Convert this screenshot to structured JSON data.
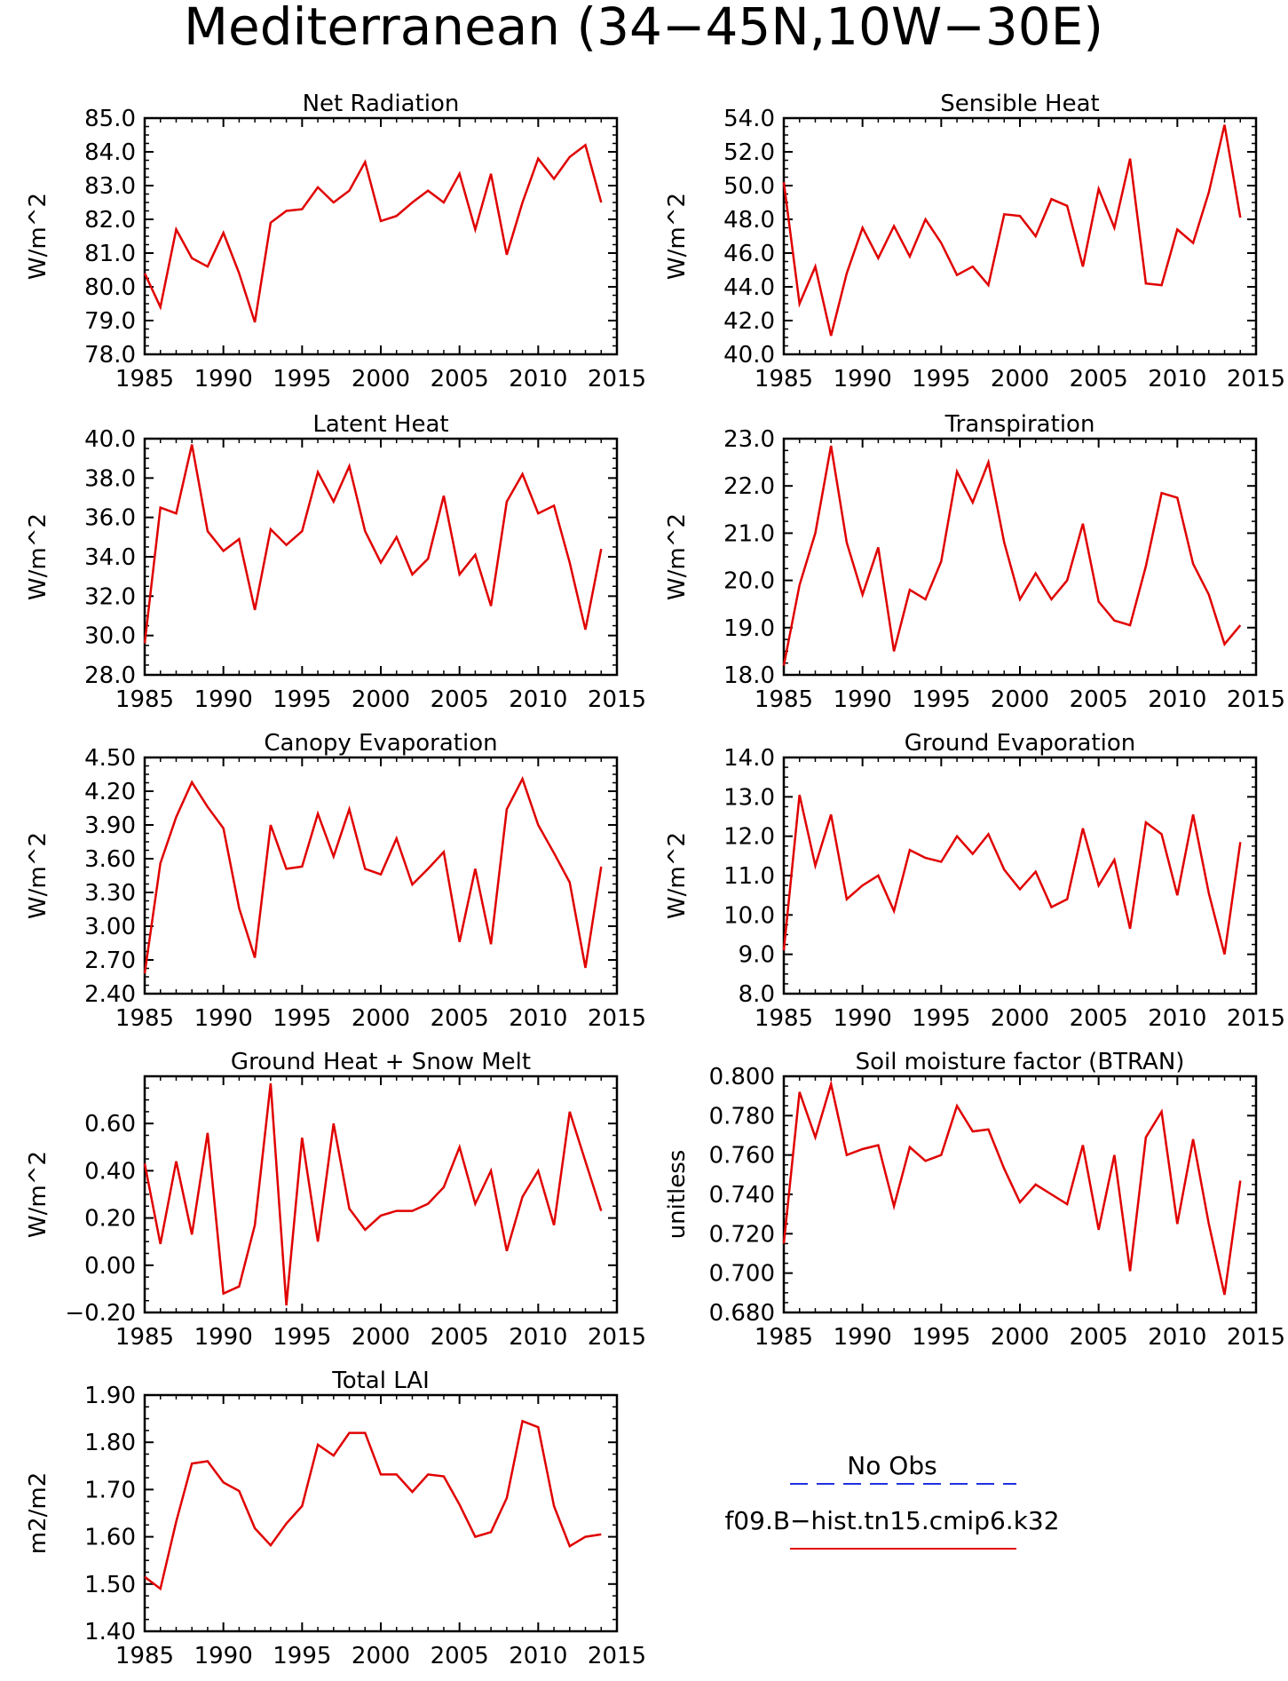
{
  "figure_title": "Mediterranean (34−45N,10W−30E)",
  "legend": {
    "entries": [
      {
        "label": "No Obs",
        "color": "#2030e0",
        "style": "dashed"
      },
      {
        "label": "f09.B−hist.tn15.cmip6.k32",
        "color": "#e00000",
        "style": "solid"
      }
    ]
  },
  "chart_data": [
    {
      "type": "line",
      "title": "Net Radiation",
      "ylabel": "W/m^2",
      "xlim": [
        1985,
        2015
      ],
      "ylim": [
        78.0,
        85.0
      ],
      "xticks": [
        "1985",
        "1990",
        "1995",
        "2000",
        "2005",
        "2010",
        "2015"
      ],
      "yticks": [
        "78.0",
        "79.0",
        "80.0",
        "81.0",
        "82.0",
        "83.0",
        "84.0",
        "85.0"
      ],
      "series": [
        {
          "color": "#e00000",
          "x": [
            1985,
            1986,
            1987,
            1988,
            1989,
            1990,
            1991,
            1992,
            1993,
            1994,
            1995,
            1996,
            1997,
            1998,
            1999,
            2000,
            2001,
            2002,
            2003,
            2004,
            2005,
            2006,
            2007,
            2008,
            2009,
            2010,
            2011,
            2012,
            2013,
            2014
          ],
          "values": [
            80.4,
            79.4,
            81.7,
            80.85,
            80.6,
            81.6,
            80.4,
            78.95,
            81.9,
            82.25,
            82.3,
            82.95,
            82.5,
            82.85,
            83.7,
            81.95,
            82.1,
            82.5,
            82.85,
            82.5,
            83.35,
            81.7,
            83.35,
            80.95,
            82.5,
            83.8,
            83.2,
            83.85,
            84.2,
            82.5
          ]
        }
      ]
    },
    {
      "type": "line",
      "title": "Sensible Heat",
      "ylabel": "W/m^2",
      "xlim": [
        1985,
        2015
      ],
      "ylim": [
        40.0,
        54.0
      ],
      "xticks": [
        "1985",
        "1990",
        "1995",
        "2000",
        "2005",
        "2010",
        "2015"
      ],
      "yticks": [
        "40.0",
        "42.0",
        "44.0",
        "46.0",
        "48.0",
        "50.0",
        "52.0",
        "54.0"
      ],
      "series": [
        {
          "color": "#e00000",
          "x": [
            1985,
            1986,
            1987,
            1988,
            1989,
            1990,
            1991,
            1992,
            1993,
            1994,
            1995,
            1996,
            1997,
            1998,
            1999,
            2000,
            2001,
            2002,
            2003,
            2004,
            2005,
            2006,
            2007,
            2008,
            2009,
            2010,
            2011,
            2012,
            2013,
            2014
          ],
          "values": [
            50.2,
            43.0,
            45.2,
            41.1,
            44.8,
            47.5,
            45.7,
            47.6,
            45.8,
            48.0,
            46.6,
            44.7,
            45.2,
            44.1,
            48.3,
            48.2,
            47.0,
            49.2,
            48.8,
            45.2,
            49.8,
            47.5,
            51.6,
            44.2,
            44.1,
            47.4,
            46.6,
            49.6,
            53.6,
            48.1
          ]
        }
      ]
    },
    {
      "type": "line",
      "title": "Latent Heat",
      "ylabel": "W/m^2",
      "xlim": [
        1985,
        2015
      ],
      "ylim": [
        28.0,
        40.0
      ],
      "xticks": [
        "1985",
        "1990",
        "1995",
        "2000",
        "2005",
        "2010",
        "2015"
      ],
      "yticks": [
        "28.0",
        "30.0",
        "32.0",
        "34.0",
        "36.0",
        "38.0",
        "40.0"
      ],
      "series": [
        {
          "color": "#e00000",
          "x": [
            1985,
            1986,
            1987,
            1988,
            1989,
            1990,
            1991,
            1992,
            1993,
            1994,
            1995,
            1996,
            1997,
            1998,
            1999,
            2000,
            2001,
            2002,
            2003,
            2004,
            2005,
            2006,
            2007,
            2008,
            2009,
            2010,
            2011,
            2012,
            2013,
            2014
          ],
          "values": [
            29.6,
            36.5,
            36.2,
            39.7,
            35.3,
            34.3,
            34.9,
            31.3,
            35.4,
            34.6,
            35.3,
            38.3,
            36.8,
            38.6,
            35.3,
            33.7,
            35.0,
            33.1,
            33.9,
            37.1,
            33.1,
            34.1,
            31.5,
            36.8,
            38.2,
            36.2,
            36.6,
            33.7,
            30.3,
            34.4
          ]
        }
      ]
    },
    {
      "type": "line",
      "title": "Transpiration",
      "ylabel": "W/m^2",
      "xlim": [
        1985,
        2015
      ],
      "ylim": [
        18.0,
        23.0
      ],
      "xticks": [
        "1985",
        "1990",
        "1995",
        "2000",
        "2005",
        "2010",
        "2015"
      ],
      "yticks": [
        "18.0",
        "19.0",
        "20.0",
        "21.0",
        "22.0",
        "23.0"
      ],
      "series": [
        {
          "color": "#e00000",
          "x": [
            1985,
            1986,
            1987,
            1988,
            1989,
            1990,
            1991,
            1992,
            1993,
            1994,
            1995,
            1996,
            1997,
            1998,
            1999,
            2000,
            2001,
            2002,
            2003,
            2004,
            2005,
            2006,
            2007,
            2008,
            2009,
            2010,
            2011,
            2012,
            2013,
            2014
          ],
          "values": [
            18.2,
            19.9,
            21.0,
            22.85,
            20.8,
            19.7,
            20.7,
            18.5,
            19.8,
            19.6,
            20.4,
            22.3,
            21.65,
            22.5,
            20.8,
            19.6,
            20.15,
            19.6,
            20.0,
            21.2,
            19.55,
            19.15,
            19.05,
            20.3,
            21.85,
            21.75,
            20.35,
            19.7,
            18.65,
            19.05
          ]
        }
      ]
    },
    {
      "type": "line",
      "title": "Canopy Evaporation",
      "ylabel": "W/m^2",
      "xlim": [
        1985,
        2015
      ],
      "ylim": [
        2.4,
        4.5
      ],
      "xticks": [
        "1985",
        "1990",
        "1995",
        "2000",
        "2005",
        "2010",
        "2015"
      ],
      "yticks": [
        "2.40",
        "2.70",
        "3.00",
        "3.30",
        "3.60",
        "3.90",
        "4.20",
        "4.50"
      ],
      "series": [
        {
          "color": "#e00000",
          "x": [
            1985,
            1986,
            1987,
            1988,
            1989,
            1990,
            1991,
            1992,
            1993,
            1994,
            1995,
            1996,
            1997,
            1998,
            1999,
            2000,
            2001,
            2002,
            2003,
            2004,
            2005,
            2006,
            2007,
            2008,
            2009,
            2010,
            2011,
            2012,
            2013,
            2014
          ],
          "values": [
            2.58,
            3.56,
            3.97,
            4.28,
            4.06,
            3.87,
            3.16,
            2.72,
            3.9,
            3.51,
            3.53,
            4.0,
            3.62,
            4.04,
            3.51,
            3.46,
            3.78,
            3.37,
            3.51,
            3.66,
            2.86,
            3.51,
            2.84,
            4.04,
            4.31,
            3.9,
            3.65,
            3.39,
            2.63,
            3.53
          ]
        }
      ]
    },
    {
      "type": "line",
      "title": "Ground Evaporation",
      "ylabel": "W/m^2",
      "xlim": [
        1985,
        2015
      ],
      "ylim": [
        8.0,
        14.0
      ],
      "xticks": [
        "1985",
        "1990",
        "1995",
        "2000",
        "2005",
        "2010",
        "2015"
      ],
      "yticks": [
        "8.0",
        "9.0",
        "10.0",
        "11.0",
        "12.0",
        "13.0",
        "14.0"
      ],
      "series": [
        {
          "color": "#e00000",
          "x": [
            1985,
            1986,
            1987,
            1988,
            1989,
            1990,
            1991,
            1992,
            1993,
            1994,
            1995,
            1996,
            1997,
            1998,
            1999,
            2000,
            2001,
            2002,
            2003,
            2004,
            2005,
            2006,
            2007,
            2008,
            2009,
            2010,
            2011,
            2012,
            2013,
            2014
          ],
          "values": [
            9.1,
            13.05,
            11.25,
            12.55,
            10.4,
            10.75,
            11.0,
            10.1,
            11.65,
            11.45,
            11.35,
            12.0,
            11.55,
            12.05,
            11.15,
            10.65,
            11.1,
            10.2,
            10.4,
            12.2,
            10.75,
            11.4,
            9.65,
            12.35,
            12.05,
            10.5,
            12.55,
            10.55,
            9.0,
            11.85
          ]
        }
      ]
    },
    {
      "type": "line",
      "title": "Ground Heat + Snow Melt",
      "ylabel": "W/m^2",
      "xlim": [
        1985,
        2015
      ],
      "ylim": [
        -0.2,
        0.8
      ],
      "xticks": [
        "1985",
        "1990",
        "1995",
        "2000",
        "2005",
        "2010",
        "2015"
      ],
      "yticks": [
        "−0.20",
        "0.00",
        "0.20",
        "0.40",
        "0.60"
      ],
      "series": [
        {
          "color": "#e00000",
          "x": [
            1985,
            1986,
            1987,
            1988,
            1989,
            1990,
            1991,
            1992,
            1993,
            1994,
            1995,
            1996,
            1997,
            1998,
            1999,
            2000,
            2001,
            2002,
            2003,
            2004,
            2005,
            2006,
            2007,
            2008,
            2009,
            2010,
            2011,
            2012,
            2013,
            2014
          ],
          "values": [
            0.43,
            0.09,
            0.44,
            0.13,
            0.56,
            -0.12,
            -0.09,
            0.17,
            0.77,
            -0.17,
            0.54,
            0.1,
            0.6,
            0.24,
            0.15,
            0.21,
            0.23,
            0.23,
            0.26,
            0.33,
            0.5,
            0.26,
            0.4,
            0.06,
            0.29,
            0.4,
            0.17,
            0.65,
            0.44,
            0.23
          ]
        }
      ]
    },
    {
      "type": "line",
      "title": "Soil moisture factor (BTRAN)",
      "ylabel": "unitless",
      "xlim": [
        1985,
        2015
      ],
      "ylim": [
        0.68,
        0.8
      ],
      "xticks": [
        "1985",
        "1990",
        "1995",
        "2000",
        "2005",
        "2010",
        "2015"
      ],
      "yticks": [
        "0.680",
        "0.700",
        "0.720",
        "0.740",
        "0.760",
        "0.780",
        "0.800"
      ],
      "series": [
        {
          "color": "#e00000",
          "x": [
            1985,
            1986,
            1987,
            1988,
            1989,
            1990,
            1991,
            1992,
            1993,
            1994,
            1995,
            1996,
            1997,
            1998,
            1999,
            2000,
            2001,
            2002,
            2003,
            2004,
            2005,
            2006,
            2007,
            2008,
            2009,
            2010,
            2011,
            2012,
            2013,
            2014
          ],
          "values": [
            0.715,
            0.792,
            0.769,
            0.796,
            0.76,
            0.763,
            0.765,
            0.734,
            0.764,
            0.757,
            0.76,
            0.785,
            0.772,
            0.773,
            0.753,
            0.736,
            0.745,
            0.74,
            0.735,
            0.765,
            0.722,
            0.76,
            0.701,
            0.769,
            0.782,
            0.725,
            0.768,
            0.725,
            0.689,
            0.747
          ]
        }
      ]
    },
    {
      "type": "line",
      "title": "Total LAI",
      "ylabel": "m2/m2",
      "xlim": [
        1985,
        2015
      ],
      "ylim": [
        1.4,
        1.9
      ],
      "xticks": [
        "1985",
        "1990",
        "1995",
        "2000",
        "2005",
        "2010",
        "2015"
      ],
      "yticks": [
        "1.40",
        "1.50",
        "1.60",
        "1.70",
        "1.80",
        "1.90"
      ],
      "series": [
        {
          "color": "#e00000",
          "x": [
            1985,
            1986,
            1987,
            1988,
            1989,
            1990,
            1991,
            1992,
            1993,
            1994,
            1995,
            1996,
            1997,
            1998,
            1999,
            2000,
            2001,
            2002,
            2003,
            2004,
            2005,
            2006,
            2007,
            2008,
            2009,
            2010,
            2011,
            2012,
            2013,
            2014
          ],
          "values": [
            1.515,
            1.49,
            1.632,
            1.755,
            1.76,
            1.715,
            1.697,
            1.618,
            1.582,
            1.628,
            1.665,
            1.795,
            1.772,
            1.82,
            1.82,
            1.732,
            1.732,
            1.695,
            1.732,
            1.728,
            1.668,
            1.6,
            1.61,
            1.682,
            1.845,
            1.832,
            1.665,
            1.58,
            1.6,
            1.605
          ]
        }
      ]
    }
  ]
}
